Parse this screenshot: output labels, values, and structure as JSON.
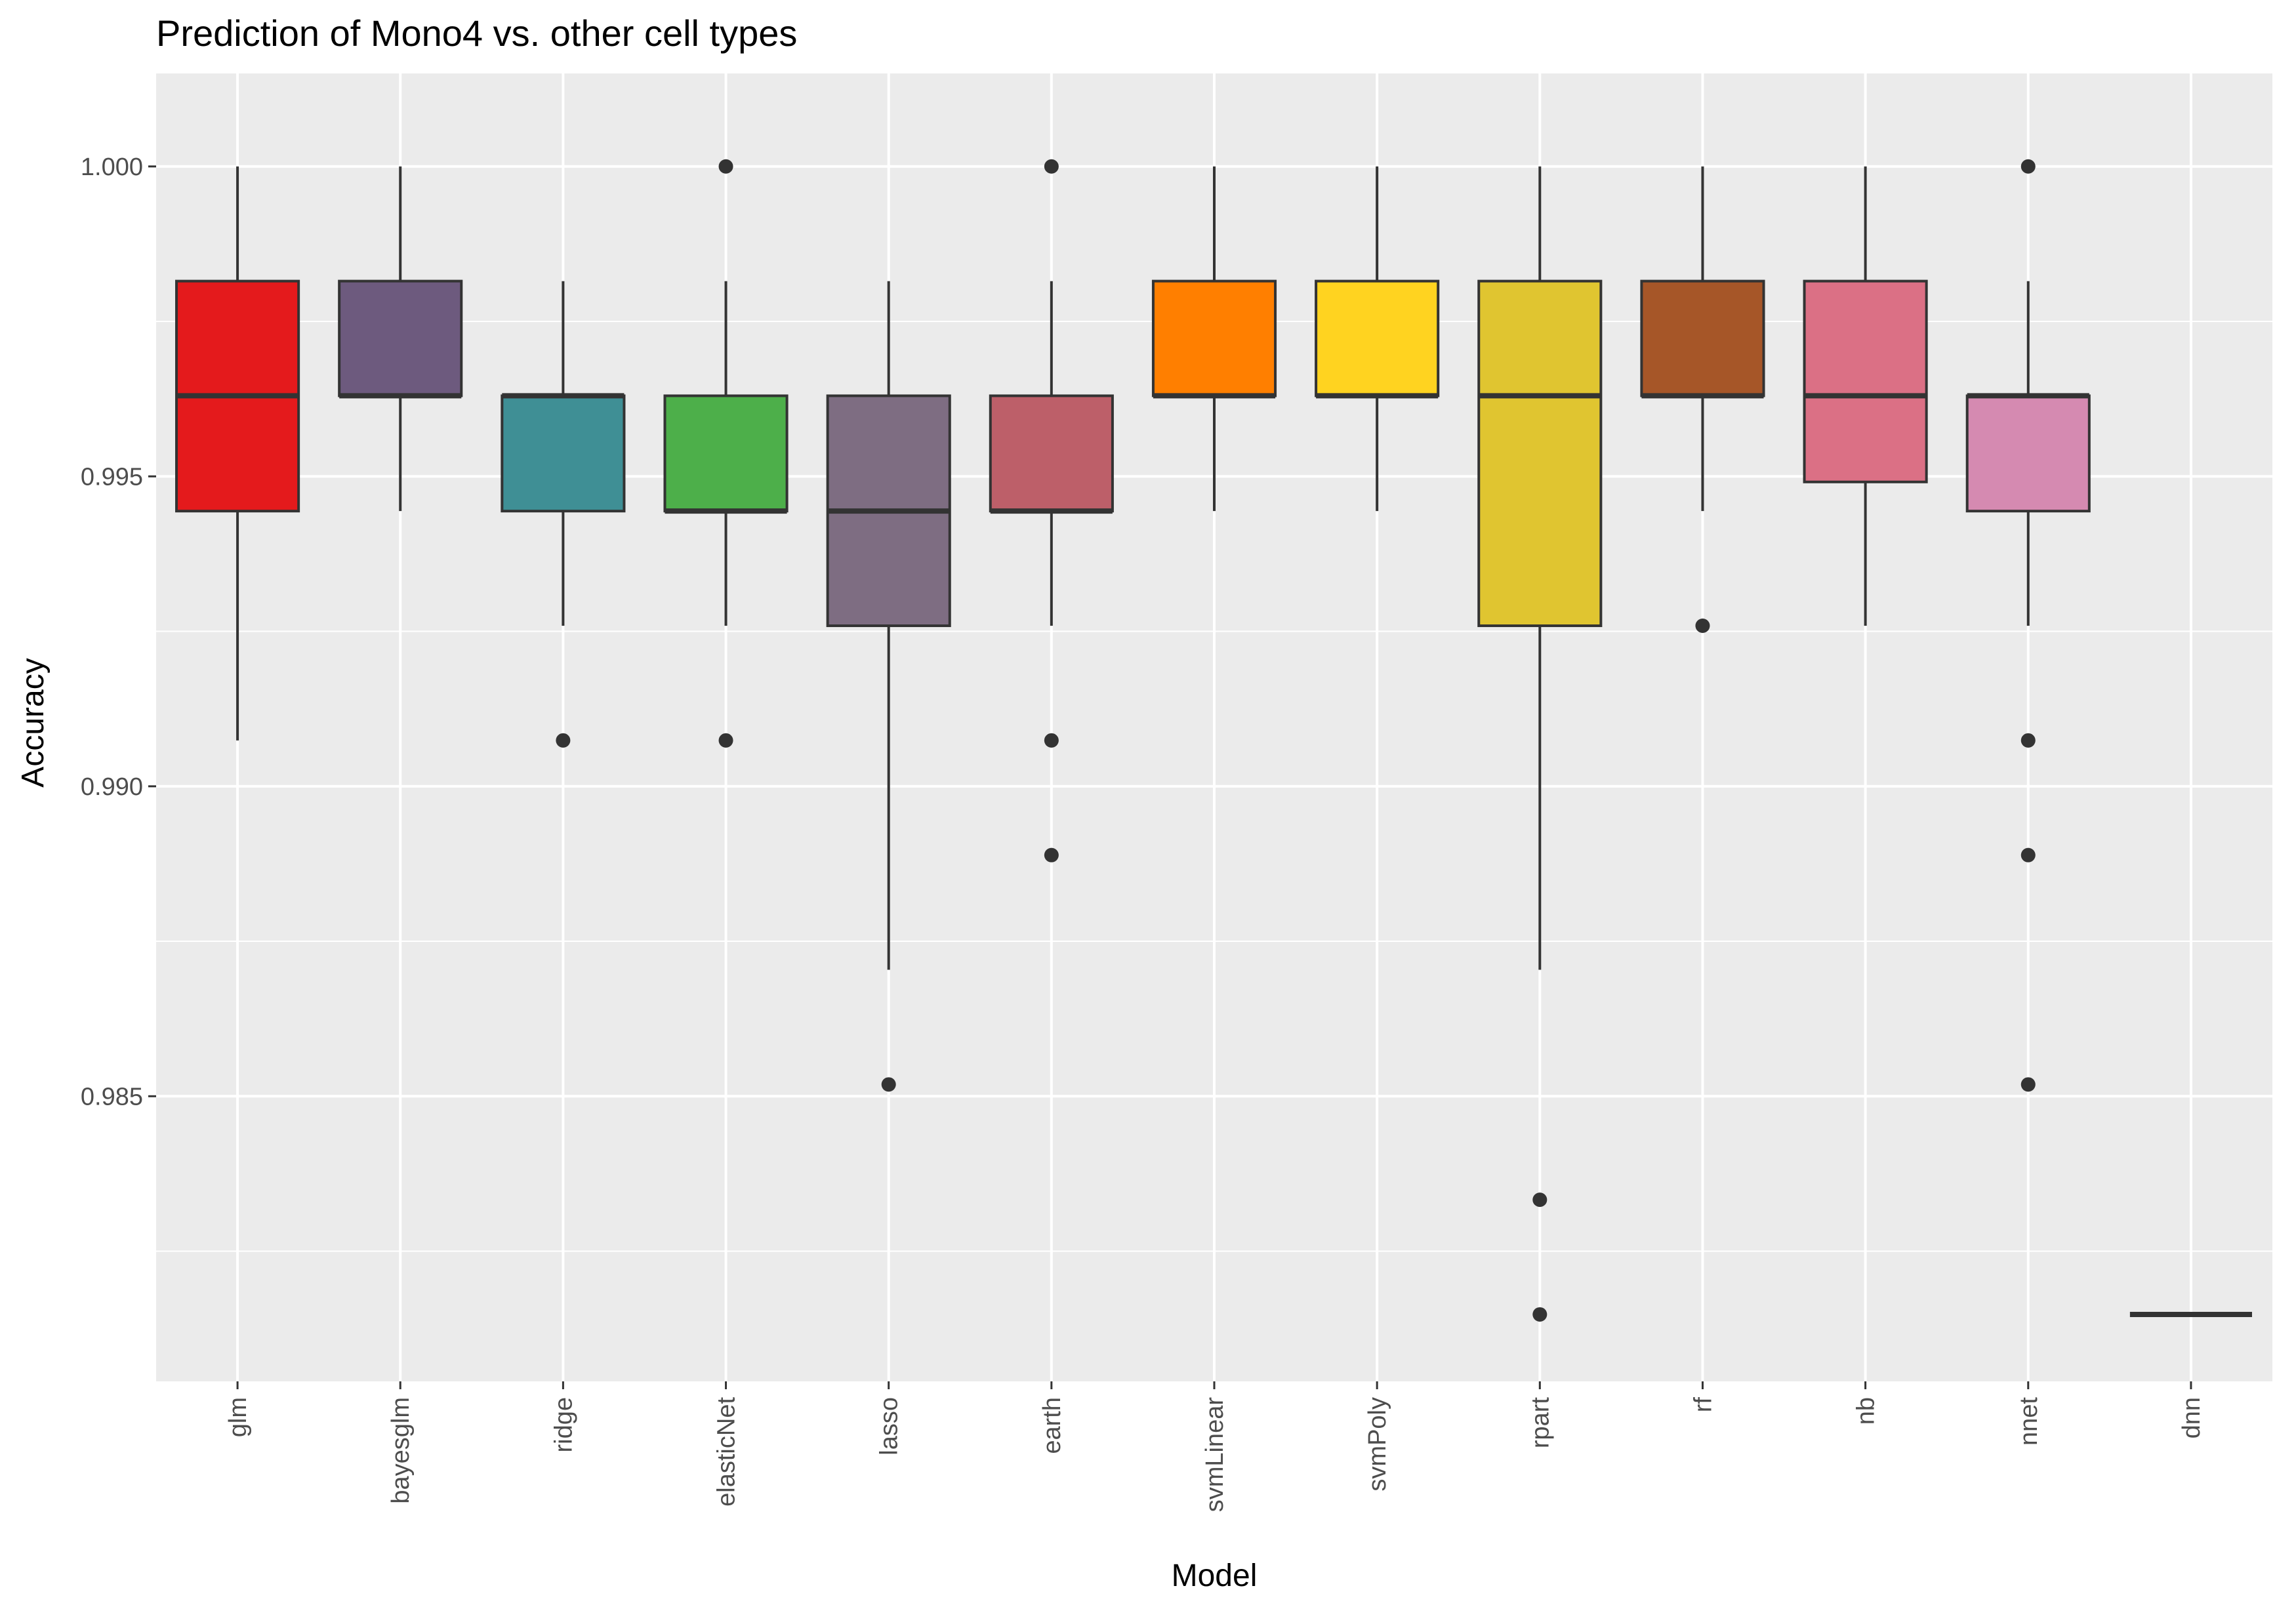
{
  "chart_data": {
    "type": "box",
    "title": "Prediction of Mono4 vs. other cell types",
    "xlabel": "Model",
    "ylabel": "Accuracy",
    "y_ticks": [
      "0.985",
      "0.990",
      "0.995",
      "1.000"
    ],
    "ylim": [
      0.9804,
      1.0015
    ],
    "grid": true,
    "legend": "none",
    "series": [
      {
        "category": "glm",
        "color": "#E41A1C",
        "lower": 0.99074,
        "q1": 0.99444,
        "median": 0.9963,
        "q3": 0.99815,
        "upper": 1.0,
        "outliers": []
      },
      {
        "category": "bayesglm",
        "color": "#6D5A7E",
        "lower": 0.99444,
        "q1": 0.9963,
        "median": 0.9963,
        "q3": 0.99815,
        "upper": 1.0,
        "outliers": []
      },
      {
        "category": "ridge",
        "color": "#3F8F95",
        "lower": 0.99259,
        "q1": 0.99444,
        "median": 0.9963,
        "q3": 0.9963,
        "upper": 0.99815,
        "outliers": [
          0.99074
        ]
      },
      {
        "category": "elasticNet",
        "color": "#4DAF4A",
        "lower": 0.99259,
        "q1": 0.99444,
        "median": 0.99444,
        "q3": 0.9963,
        "upper": 0.99815,
        "outliers": [
          1.0,
          0.99074
        ]
      },
      {
        "category": "lasso",
        "color": "#7E6D82",
        "lower": 0.98704,
        "q1": 0.99259,
        "median": 0.99444,
        "q3": 0.9963,
        "upper": 0.99815,
        "outliers": [
          0.98519
        ]
      },
      {
        "category": "earth",
        "color": "#BD5F69",
        "lower": 0.99259,
        "q1": 0.99444,
        "median": 0.99444,
        "q3": 0.9963,
        "upper": 0.99815,
        "outliers": [
          1.0,
          0.99074,
          0.98889
        ]
      },
      {
        "category": "svmLinear",
        "color": "#FF7F00",
        "lower": 0.99444,
        "q1": 0.9963,
        "median": 0.9963,
        "q3": 0.99815,
        "upper": 1.0,
        "outliers": []
      },
      {
        "category": "svmPoly",
        "color": "#FFD320",
        "lower": 0.99444,
        "q1": 0.9963,
        "median": 0.9963,
        "q3": 0.99815,
        "upper": 1.0,
        "outliers": []
      },
      {
        "category": "rpart",
        "color": "#E0C530",
        "lower": 0.98704,
        "q1": 0.99259,
        "median": 0.9963,
        "q3": 0.99815,
        "upper": 1.0,
        "outliers": [
          0.98333,
          0.98148
        ]
      },
      {
        "category": "rf",
        "color": "#A65628",
        "lower": 0.99444,
        "q1": 0.9963,
        "median": 0.9963,
        "q3": 0.99815,
        "upper": 1.0,
        "outliers": [
          0.99259
        ]
      },
      {
        "category": "nb",
        "color": "#DB7085",
        "lower": 0.99259,
        "q1": 0.99491,
        "median": 0.9963,
        "q3": 0.99815,
        "upper": 1.0,
        "outliers": []
      },
      {
        "category": "nnet",
        "color": "#D58AB1",
        "lower": 0.99259,
        "q1": 0.99444,
        "median": 0.9963,
        "q3": 0.9963,
        "upper": 0.99815,
        "outliers": [
          1.0,
          0.99074,
          0.98889,
          0.98519
        ]
      },
      {
        "category": "dnn",
        "color": "#999999",
        "lower": 0.98148,
        "q1": 0.98148,
        "median": 0.98148,
        "q3": 0.98148,
        "upper": 0.98148,
        "outliers": []
      }
    ]
  }
}
